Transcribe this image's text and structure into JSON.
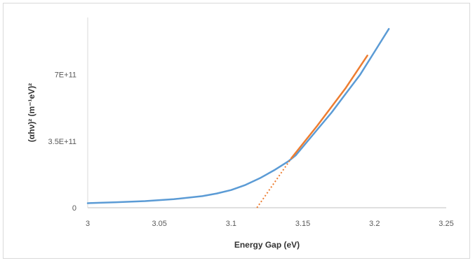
{
  "chart_data": {
    "type": "line",
    "title": "",
    "xlabel": "Energy Gap (eV)",
    "ylabel": "(αhν)²  (m⁻¹eV)²",
    "xlim": [
      3,
      3.25
    ],
    "ylim": [
      0,
      1000000000000
    ],
    "x_ticks": [
      3,
      3.05,
      3.1,
      3.15,
      3.2,
      3.25
    ],
    "x_tick_labels": [
      "3",
      "3.05",
      "3.1",
      "3.15",
      "3.2",
      "3.25"
    ],
    "y_ticks": [
      0,
      350000000000,
      700000000000
    ],
    "y_tick_labels": [
      "0",
      "3.5E+11",
      "7E+11"
    ],
    "grid": false,
    "legend": "none",
    "series": [
      {
        "color": "#5b9bd5",
        "style": "solid",
        "x": [
          3.0,
          3.02,
          3.04,
          3.06,
          3.08,
          3.09,
          3.1,
          3.11,
          3.12,
          3.13,
          3.14,
          3.145,
          3.15,
          3.16,
          3.17,
          3.18,
          3.19,
          3.2,
          3.205,
          3.21
        ],
        "y": [
          24000000000,
          29000000000,
          35000000000,
          45000000000,
          61000000000,
          75000000000,
          93000000000,
          120000000000,
          155000000000,
          197000000000,
          245000000000,
          275000000000,
          320000000000,
          410000000000,
          500000000000,
          600000000000,
          700000000000,
          820000000000,
          880000000000,
          940000000000
        ]
      },
      {
        "color": "#ed7d31",
        "style": "solid",
        "x": [
          3.142,
          3.16,
          3.18,
          3.195
        ],
        "y": [
          260000000000,
          430000000000,
          630000000000,
          800000000000
        ]
      },
      {
        "color": "#ed7d31",
        "style": "dotted",
        "x": [
          3.118,
          3.142
        ],
        "y": [
          0,
          260000000000
        ]
      }
    ]
  }
}
